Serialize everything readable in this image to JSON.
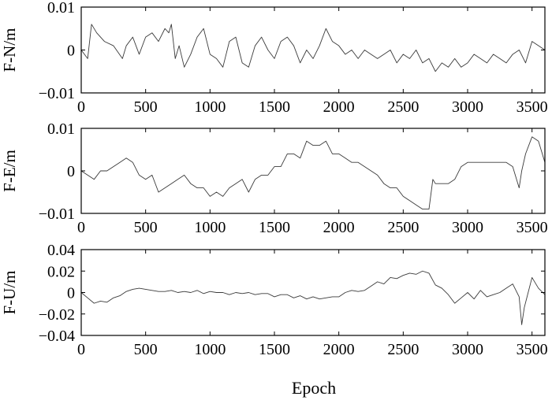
{
  "colors": {
    "line": "#3a3a3a",
    "axis": "#000000",
    "background": "#ffffff"
  },
  "figure": {
    "xlabel": "Epoch"
  },
  "chart_data": [
    {
      "type": "line",
      "title": "",
      "xlabel": "",
      "ylabel": "F-N/m",
      "xlim": [
        0,
        3600
      ],
      "ylim": [
        -0.01,
        0.01
      ],
      "xticks": [
        0,
        500,
        1000,
        1500,
        2000,
        2500,
        3000,
        3500
      ],
      "xtick_labels": [
        "0",
        "500",
        "1000",
        "1500",
        "2000",
        "2500",
        "3000",
        "3500"
      ],
      "yticks": [
        -0.01,
        0,
        0.01
      ],
      "ytick_labels": [
        "−0.01",
        "0",
        "0.01"
      ],
      "grid": false,
      "series": [
        {
          "x": [
            0,
            50,
            80,
            120,
            180,
            250,
            320,
            350,
            400,
            450,
            500,
            550,
            600,
            650,
            680,
            700,
            730,
            760,
            800,
            850,
            900,
            950,
            1000,
            1050,
            1100,
            1150,
            1200,
            1250,
            1300,
            1350,
            1400,
            1450,
            1500,
            1550,
            1600,
            1650,
            1700,
            1750,
            1800,
            1850,
            1900,
            1950,
            2000,
            2050,
            2100,
            2150,
            2200,
            2250,
            2300,
            2350,
            2400,
            2450,
            2500,
            2550,
            2600,
            2650,
            2700,
            2750,
            2800,
            2850,
            2900,
            2950,
            3000,
            3050,
            3100,
            3150,
            3200,
            3250,
            3300,
            3350,
            3400,
            3450,
            3500,
            3550,
            3600
          ],
          "y": [
            0.0,
            -0.002,
            0.006,
            0.004,
            0.002,
            0.001,
            -0.002,
            0.001,
            0.003,
            -0.001,
            0.003,
            0.004,
            0.002,
            0.005,
            0.004,
            0.006,
            -0.002,
            0.001,
            -0.004,
            -0.001,
            0.003,
            0.005,
            -0.001,
            -0.002,
            -0.004,
            0.002,
            0.003,
            -0.003,
            -0.004,
            0.001,
            0.003,
            0.0,
            -0.002,
            0.002,
            0.003,
            0.001,
            -0.003,
            0.0,
            -0.002,
            0.001,
            0.005,
            0.002,
            0.001,
            -0.001,
            0.0,
            -0.002,
            0.0,
            -0.001,
            -0.002,
            -0.001,
            0.0,
            -0.003,
            -0.001,
            -0.002,
            0.0,
            -0.003,
            -0.002,
            -0.005,
            -0.003,
            -0.004,
            -0.002,
            -0.004,
            -0.003,
            -0.001,
            -0.002,
            -0.003,
            -0.001,
            -0.002,
            -0.003,
            -0.001,
            0.0,
            -0.003,
            0.002,
            0.001,
            0.0
          ]
        }
      ]
    },
    {
      "type": "line",
      "title": "",
      "xlabel": "",
      "ylabel": "F-E/m",
      "xlim": [
        0,
        3600
      ],
      "ylim": [
        -0.01,
        0.01
      ],
      "xticks": [
        0,
        500,
        1000,
        1500,
        2000,
        2500,
        3000,
        3500
      ],
      "xtick_labels": [
        "0",
        "500",
        "1000",
        "1500",
        "2000",
        "2500",
        "3000",
        "3500"
      ],
      "yticks": [
        -0.01,
        0,
        0.01
      ],
      "ytick_labels": [
        "−0.01",
        "0",
        "0.01"
      ],
      "grid": false,
      "series": [
        {
          "x": [
            0,
            50,
            100,
            150,
            200,
            250,
            300,
            350,
            400,
            450,
            500,
            550,
            600,
            650,
            700,
            750,
            800,
            850,
            900,
            950,
            1000,
            1050,
            1100,
            1150,
            1200,
            1250,
            1300,
            1350,
            1400,
            1450,
            1500,
            1550,
            1600,
            1650,
            1700,
            1750,
            1800,
            1850,
            1900,
            1950,
            2000,
            2050,
            2100,
            2150,
            2200,
            2250,
            2300,
            2350,
            2400,
            2450,
            2500,
            2550,
            2600,
            2650,
            2700,
            2730,
            2750,
            2800,
            2850,
            2900,
            2950,
            3000,
            3050,
            3100,
            3150,
            3200,
            3250,
            3300,
            3350,
            3400,
            3420,
            3450,
            3500,
            3550,
            3600
          ],
          "y": [
            0.0,
            -0.001,
            -0.002,
            0.0,
            0.0,
            0.001,
            0.002,
            0.003,
            0.002,
            -0.001,
            -0.002,
            -0.001,
            -0.005,
            -0.004,
            -0.003,
            -0.002,
            -0.001,
            -0.003,
            -0.004,
            -0.004,
            -0.006,
            -0.005,
            -0.006,
            -0.004,
            -0.003,
            -0.002,
            -0.005,
            -0.002,
            -0.001,
            -0.001,
            0.001,
            0.001,
            0.004,
            0.004,
            0.003,
            0.007,
            0.006,
            0.006,
            0.007,
            0.004,
            0.004,
            0.003,
            0.002,
            0.002,
            0.001,
            0.0,
            -0.001,
            -0.003,
            -0.004,
            -0.004,
            -0.006,
            -0.007,
            -0.008,
            -0.009,
            -0.009,
            -0.002,
            -0.003,
            -0.003,
            -0.003,
            -0.002,
            0.001,
            0.002,
            0.002,
            0.002,
            0.002,
            0.002,
            0.002,
            0.002,
            0.001,
            -0.004,
            0.0,
            0.004,
            0.008,
            0.007,
            0.002
          ]
        }
      ]
    },
    {
      "type": "line",
      "title": "",
      "xlabel": "Epoch",
      "ylabel": "F-U/m",
      "xlim": [
        0,
        3600
      ],
      "ylim": [
        -0.04,
        0.04
      ],
      "xticks": [
        0,
        500,
        1000,
        1500,
        2000,
        2500,
        3000,
        3500
      ],
      "xtick_labels": [
        "0",
        "500",
        "1000",
        "1500",
        "2000",
        "2500",
        "3000",
        "3500"
      ],
      "yticks": [
        -0.04,
        -0.02,
        0,
        0.02,
        0.04
      ],
      "ytick_labels": [
        "−0.04",
        "−0.02",
        "0",
        "0.02",
        "0.04"
      ],
      "grid": false,
      "series": [
        {
          "x": [
            0,
            50,
            100,
            150,
            200,
            250,
            300,
            350,
            400,
            450,
            500,
            550,
            600,
            650,
            700,
            750,
            800,
            850,
            900,
            950,
            1000,
            1050,
            1100,
            1150,
            1200,
            1250,
            1300,
            1350,
            1400,
            1450,
            1500,
            1550,
            1600,
            1650,
            1700,
            1750,
            1800,
            1850,
            1900,
            1950,
            2000,
            2050,
            2100,
            2150,
            2200,
            2250,
            2300,
            2350,
            2400,
            2450,
            2500,
            2550,
            2600,
            2650,
            2700,
            2750,
            2800,
            2850,
            2900,
            2950,
            3000,
            3050,
            3100,
            3150,
            3200,
            3250,
            3300,
            3350,
            3400,
            3420,
            3440,
            3500,
            3550,
            3600
          ],
          "y": [
            0.0,
            -0.005,
            -0.01,
            -0.008,
            -0.009,
            -0.005,
            -0.003,
            0.001,
            0.003,
            0.004,
            0.003,
            0.002,
            0.001,
            0.001,
            0.002,
            0.0,
            0.001,
            0.0,
            0.002,
            -0.001,
            0.001,
            0.0,
            0.0,
            -0.002,
            0.0,
            -0.001,
            0.0,
            -0.002,
            -0.001,
            -0.001,
            -0.004,
            -0.002,
            -0.002,
            -0.005,
            -0.003,
            -0.006,
            -0.004,
            -0.006,
            -0.005,
            -0.004,
            -0.004,
            0.0,
            0.002,
            0.001,
            0.002,
            0.006,
            0.01,
            0.008,
            0.014,
            0.013,
            0.016,
            0.018,
            0.017,
            0.02,
            0.018,
            0.007,
            0.004,
            -0.002,
            -0.01,
            -0.005,
            0.0,
            -0.006,
            0.002,
            -0.004,
            -0.002,
            0.0,
            0.004,
            0.008,
            -0.004,
            -0.03,
            -0.014,
            0.014,
            0.004,
            -0.002
          ]
        }
      ]
    }
  ]
}
